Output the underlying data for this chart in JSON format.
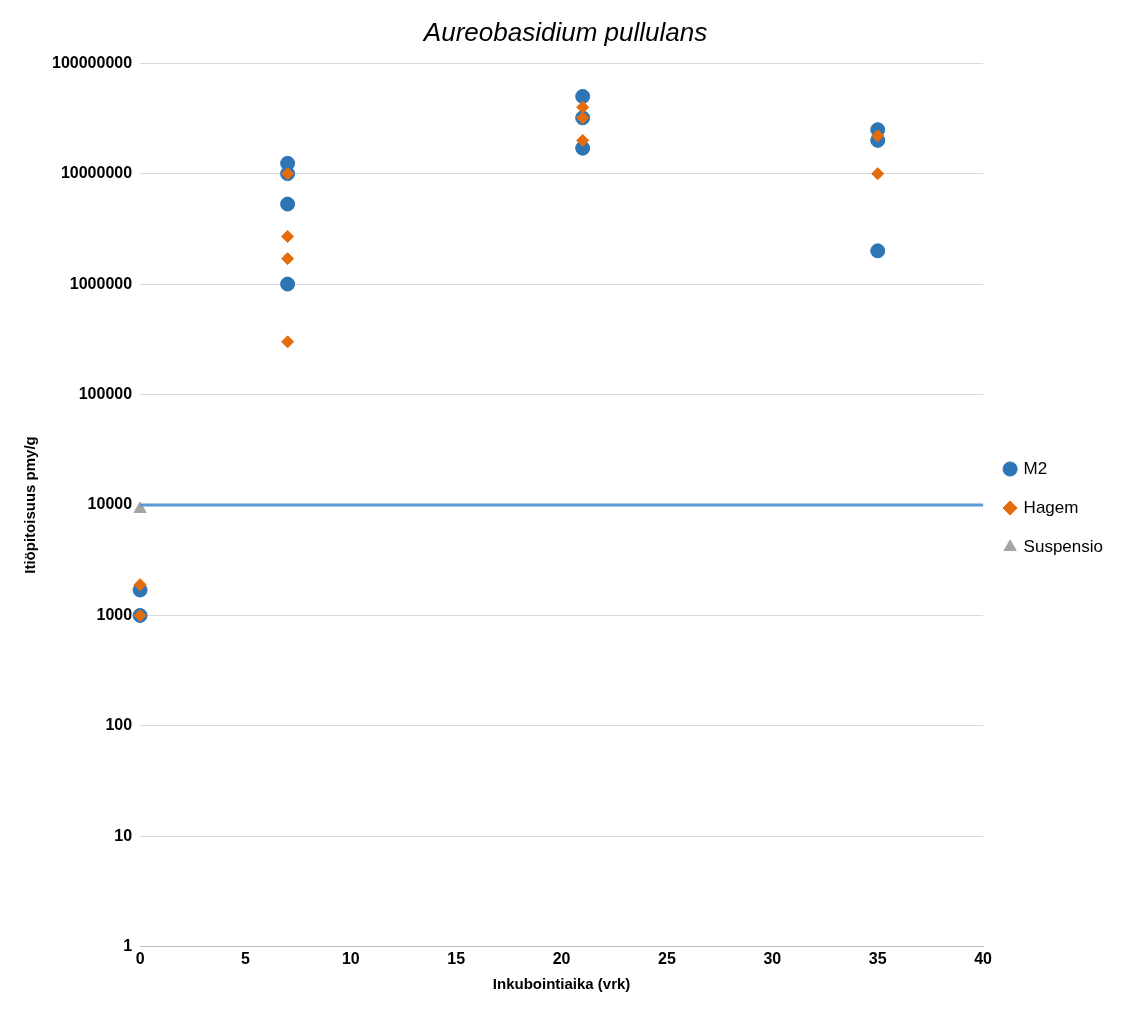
{
  "chart_data": {
    "type": "scatter",
    "title": "Aureobasidium pullulans",
    "xlabel": "Inkubointiaika (vrk)",
    "ylabel": "Itiöpitoisuus pmy/g",
    "xlim": [
      0,
      40
    ],
    "xticks": [
      0,
      5,
      10,
      15,
      20,
      25,
      30,
      35,
      40
    ],
    "ylim": [
      1,
      100000000
    ],
    "yticks": [
      1,
      10,
      100,
      1000,
      10000,
      100000,
      1000000,
      10000000,
      100000000
    ],
    "log": "y",
    "grid": "y",
    "legend": "right",
    "ref_lines": [
      {
        "axis": "y",
        "value": 10000,
        "color": "#5b9bd5"
      }
    ],
    "series": [
      {
        "name": "M2",
        "color": "#2e75b6",
        "marker": "circle",
        "x": [
          0,
          0,
          7,
          7,
          7,
          7,
          21,
          21,
          21,
          35,
          35,
          35
        ],
        "values": [
          1000,
          1700,
          12400000,
          10000000,
          5300000,
          1000000,
          50000000,
          32000000,
          17000000,
          25000000,
          20000000,
          2000000
        ]
      },
      {
        "name": "Hagem",
        "color": "#e46c0a",
        "marker": "diamond",
        "x": [
          0,
          0,
          7,
          7,
          7,
          7,
          21,
          21,
          21,
          35,
          35
        ],
        "values": [
          1000,
          1900,
          10000000,
          2700000,
          1700000,
          300000,
          40000000,
          32000000,
          20000000,
          22000000,
          10000000
        ]
      },
      {
        "name": "Suspensio",
        "color": "#a5a5a5",
        "marker": "triangle",
        "x": [
          0
        ],
        "values": [
          9200
        ]
      }
    ]
  }
}
